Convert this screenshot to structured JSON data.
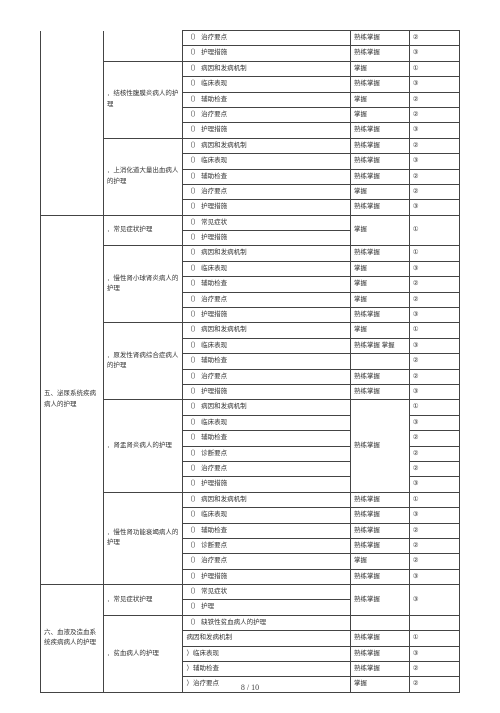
{
  "footer": "8 / 10",
  "sections": [
    {
      "cat": "",
      "groups": [
        {
          "name": "",
          "rows": [
            {
              "c3": "（） 治疗要点",
              "c4": "熟练掌握",
              "c5": "②"
            },
            {
              "c3": "（） 护理措施",
              "c4": "熟练掌握",
              "c5": "③"
            }
          ]
        },
        {
          "name": "．结核性腹膜炎病人的护理",
          "rows": [
            {
              "c3": "（） 病因和发病机制",
              "c4": "掌握",
              "c5": "①"
            },
            {
              "c3": "（） 临床表现",
              "c4": "熟练掌握",
              "c5": "③"
            },
            {
              "c3": "（） 辅助检查",
              "c4": "掌握",
              "c5": "②"
            },
            {
              "c3": "（） 治疗要点",
              "c4": "掌握",
              "c5": "②"
            },
            {
              "c3": "（） 护理措施",
              "c4": "熟练掌握",
              "c5": "③"
            }
          ]
        },
        {
          "name": "．上消化道大量出血病人的护理",
          "rows": [
            {
              "c3": "（） 病因和发病机制",
              "c4": "熟练掌握",
              "c5": "②"
            },
            {
              "c3": "（） 临床表现",
              "c4": "熟练掌握",
              "c5": "③"
            },
            {
              "c3": "（） 辅助检查",
              "c4": "熟练掌握",
              "c5": "②"
            },
            {
              "c3": "（） 治疗要点",
              "c4": "掌握",
              "c5": "②"
            },
            {
              "c3": "（） 护理措施",
              "c4": "熟练掌握",
              "c5": "③"
            }
          ]
        }
      ]
    },
    {
      "cat": "五、泌尿系统疾病病人的护理",
      "groups": [
        {
          "name": "．常见症状护理",
          "rows": [
            {
              "c3": "（） 常见症状",
              "c4": "掌握",
              "c5": "①",
              "merge45": true
            },
            {
              "c3": "（） 护理措施",
              "c4": "",
              "c5": ""
            }
          ]
        },
        {
          "name": "．慢性肾小球肾炎病人的护理",
          "rows": [
            {
              "c3": "（） 病因和发病机制",
              "c4": "熟练掌握",
              "c5": "①"
            },
            {
              "c3": "（） 临床表现",
              "c4": "掌握",
              "c5": "③"
            },
            {
              "c3": "（） 辅助检查",
              "c4": "掌握",
              "c5": "②"
            },
            {
              "c3": "（） 治疗要点",
              "c4": "掌握",
              "c5": "②"
            },
            {
              "c3": "（） 护理措施",
              "c4": "熟练掌握",
              "c5": "③"
            }
          ]
        },
        {
          "name": "．原发性肾病综合症病人的护理",
          "rows": [
            {
              "c3": "（） 病因和发病机制",
              "c4": "掌握",
              "c5": "①"
            },
            {
              "c3": "（） 临床表现",
              "c4": "熟练掌握 掌握",
              "c5": "③"
            },
            {
              "c3": "（） 辅助检查",
              "c4": "",
              "c5": "②"
            },
            {
              "c3": "（） 治疗要点",
              "c4": "熟练掌握",
              "c5": "②"
            },
            {
              "c3": "（） 护理措施",
              "c4": "熟练掌握",
              "c5": "③"
            }
          ]
        },
        {
          "name": "．肾盂肾炎病人的护理",
          "rows": [
            {
              "c3": "（） 病因和发病机制",
              "c4": "熟练掌握",
              "c5": "①",
              "merge4": 6
            },
            {
              "c3": "（） 临床表现",
              "c5": "③"
            },
            {
              "c3": "（） 辅助检查",
              "c5": "②"
            },
            {
              "c3": "（） 诊断要点",
              "c5": "②"
            },
            {
              "c3": "（） 治疗要点",
              "c5": "②"
            },
            {
              "c3": "（） 护理措施",
              "c5": "③"
            }
          ]
        },
        {
          "name": "．慢性肾功能衰竭病人的护理",
          "rows": [
            {
              "c3": "（） 病因和发病机制",
              "c4": "熟练掌握",
              "c5": "①"
            },
            {
              "c3": "（） 临床表现",
              "c4": "熟练掌握",
              "c5": "③"
            },
            {
              "c3": "（） 辅助检查",
              "c4": "熟练掌握",
              "c5": "②"
            },
            {
              "c3": "（） 诊断要点",
              "c4": "熟练掌握",
              "c5": "②"
            },
            {
              "c3": "（） 治疗要点",
              "c4": "掌握",
              "c5": "②"
            },
            {
              "c3": "（） 护理措施",
              "c4": "熟练掌握",
              "c5": "③"
            }
          ]
        }
      ]
    },
    {
      "cat": "六、血液及造血系统疾病病人的护理",
      "groups": [
        {
          "name": "．常见症状护理",
          "rows": [
            {
              "c3": "（） 常见症状",
              "c4": "熟练掌握",
              "c5": "③",
              "merge45row": 2
            },
            {
              "c3": "（） 护理"
            }
          ]
        },
        {
          "name": "．贫血病人的护理",
          "rows": [
            {
              "c3": "（） 缺铁性贫血病人的护理",
              "c4": "",
              "c5": ""
            },
            {
              "c3": "病因和发病机制",
              "c4": "熟练掌握",
              "c5": "①"
            },
            {
              "c3": "）临床表现",
              "c4": "熟练掌握",
              "c5": "③"
            },
            {
              "c3": "）辅助检查",
              "c4": "熟练掌握",
              "c5": "②"
            },
            {
              "c3": "）治疗要点",
              "c4": "掌握",
              "c5": "②"
            }
          ]
        }
      ]
    }
  ]
}
